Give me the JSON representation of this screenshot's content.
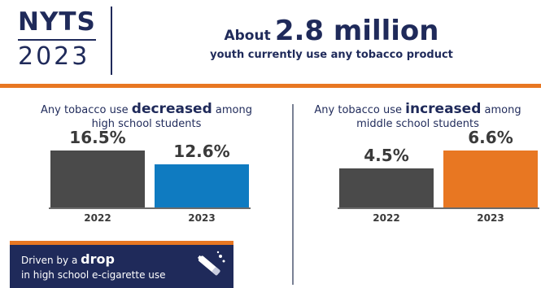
{
  "logo": {
    "top": "NYTS",
    "bottom": "2023"
  },
  "headline": {
    "prefix": "About",
    "emphasis": "2.8 million",
    "subtitle": "youth currently use any tobacco product"
  },
  "colors": {
    "navy": "#1f2a5a",
    "orange": "#e87722",
    "gray_bar": "#4a4a4a",
    "blue_bar": "#0f7bc1",
    "orange_bar": "#e87722"
  },
  "left_panel": {
    "title_pre": "Any tobacco use",
    "title_emph": "decreased",
    "title_post": "among",
    "title_line2": "high school students"
  },
  "right_panel": {
    "title_pre": "Any tobacco use",
    "title_emph": "increased",
    "title_post": "among",
    "title_line2": "middle school students"
  },
  "callout": {
    "pre": "Driven by a",
    "emph": "drop",
    "line2": "in high school e-cigarette use",
    "icon": "e-cigarette-icon"
  },
  "chart_data": [
    {
      "type": "bar",
      "categories": [
        "2022",
        "2023"
      ],
      "values": [
        16.5,
        12.6
      ],
      "value_labels": [
        "16.5%",
        "12.6%"
      ],
      "colors": [
        "#4a4a4a",
        "#0f7bc1"
      ],
      "ylim": [
        0,
        20
      ]
    },
    {
      "type": "bar",
      "categories": [
        "2022",
        "2023"
      ],
      "values": [
        4.5,
        6.6
      ],
      "value_labels": [
        "4.5%",
        "6.6%"
      ],
      "colors": [
        "#4a4a4a",
        "#e87722"
      ],
      "ylim": [
        0,
        8
      ]
    }
  ]
}
